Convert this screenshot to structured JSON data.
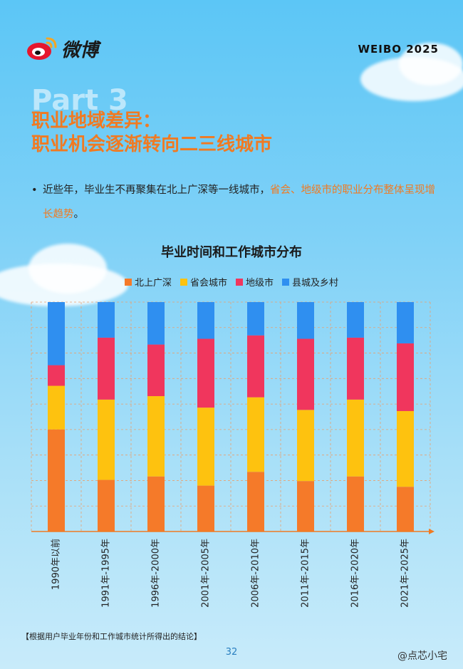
{
  "brand": {
    "name": "微博",
    "badge": "WEIBO  2025"
  },
  "part_label": "Part 3",
  "title_lines": [
    "职业地域差异：",
    "职业机会逐渐转向二三线城市"
  ],
  "bullet": {
    "text_plain": "近些年，毕业生不再聚集在北上广深等一线城市，",
    "text_highlight": "省会、地级市的职业分布整体呈现增长趋势",
    "text_end": "。"
  },
  "footnote": "【根据用户毕业年份和工作城市统计所得出的结论】",
  "page_number": "32",
  "watermark": "@点芯小宅",
  "colors": {
    "accent": "#f07a22",
    "c1": "#f57a29",
    "c2": "#fec20f",
    "c3": "#f0365d",
    "c4": "#2f8ff0"
  },
  "chart_data": {
    "type": "bar",
    "stacked": true,
    "normalized": true,
    "title": "毕业时间和工作城市分布",
    "categories": [
      "1990年以前",
      "1991年-1995年",
      "1996年-2000年",
      "2001年-2005年",
      "2006年-2010年",
      "2011年-2015年",
      "2016年-2020年",
      "2021年-2025年"
    ],
    "series": [
      {
        "name": "北上广深",
        "color": "#f57a29",
        "values": [
          44.5,
          22.5,
          24.0,
          20.0,
          26.0,
          22.0,
          24.0,
          19.5
        ]
      },
      {
        "name": "省会城市",
        "color": "#fec20f",
        "values": [
          19.0,
          35.0,
          35.0,
          34.0,
          32.5,
          31.0,
          33.5,
          33.0
        ]
      },
      {
        "name": "地级市",
        "color": "#f0365d",
        "values": [
          9.0,
          27.0,
          22.5,
          30.0,
          27.0,
          31.0,
          27.0,
          29.5
        ]
      },
      {
        "name": "县城及乡村",
        "color": "#2f8ff0",
        "values": [
          27.5,
          15.5,
          18.5,
          16.0,
          14.5,
          16.0,
          15.5,
          18.0
        ]
      }
    ],
    "ylim": [
      0,
      100
    ],
    "grid": true,
    "legend": "top-center"
  }
}
